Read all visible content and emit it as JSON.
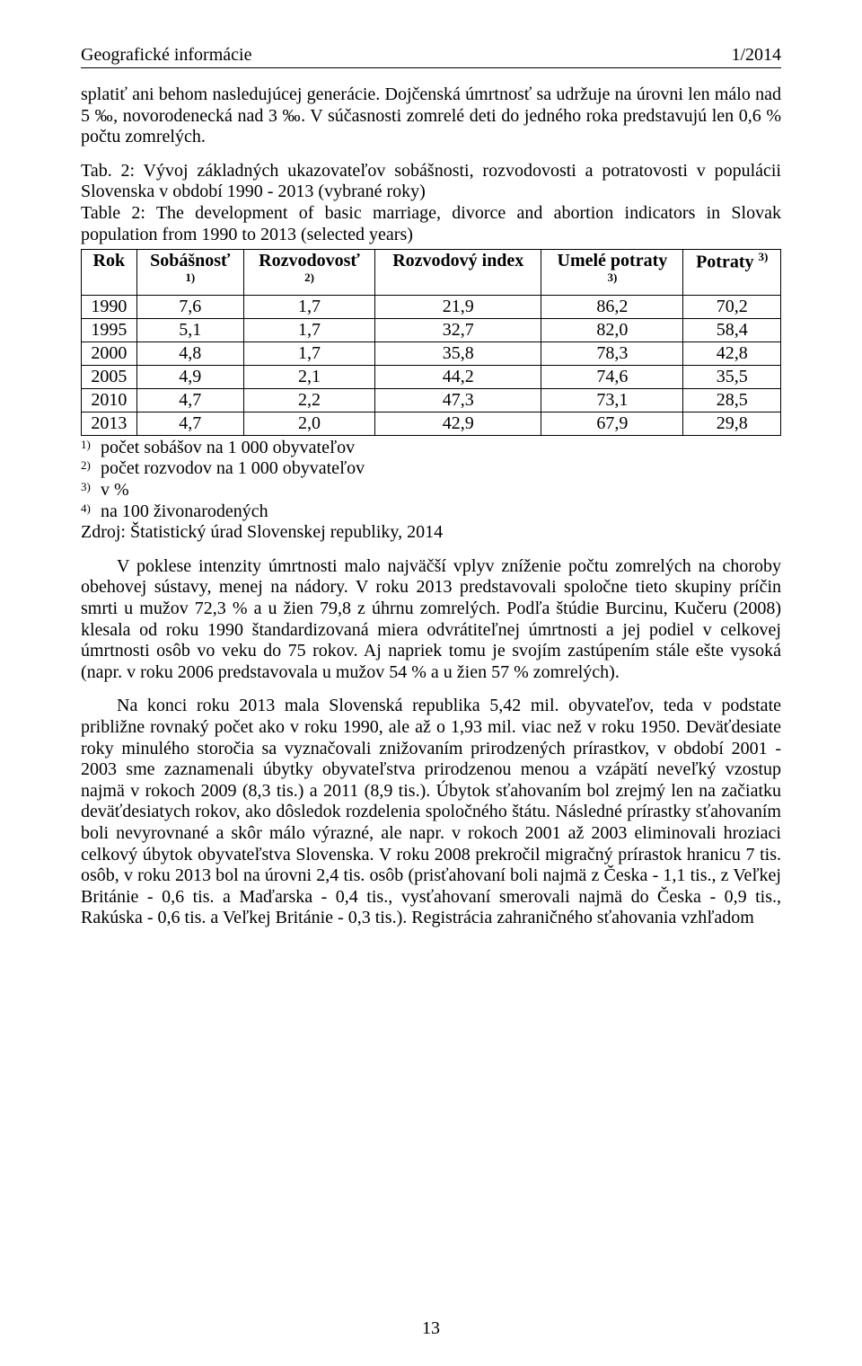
{
  "header": {
    "left": "Geografické informácie",
    "right": "1/2014"
  },
  "para1": "splatiť ani behom nasledujúcej generácie. Dojčenská úmrtnosť sa udržuje na úrovni len málo nad 5 ‰, novorodenecká nad 3 ‰. V súčasnosti zomrelé deti do jedného roka predstavujú len 0,6 % počtu zomrelých.",
  "table_caption_sk": "Tab. 2:  Vývoj základných ukazovateľov sobášnosti, rozvodovosti a potratovosti v populácii Slovenska v období 1990 - 2013 (vybrané roky)",
  "table_caption_en": "Table 2: The development of basic marriage, divorce and abortion indicators in Slovak population from 1990 to 2013 (selected years)",
  "table": {
    "columns": [
      {
        "label": "Rok",
        "sup": ""
      },
      {
        "label": "Sobášnosť",
        "sup": "1)"
      },
      {
        "label": "Rozvodovosť",
        "sup": "2)"
      },
      {
        "label": "Rozvodový index",
        "sup": ""
      },
      {
        "label": "Umelé potraty",
        "sup": "3)"
      },
      {
        "label": "Potraty",
        "sup": "3)"
      }
    ],
    "rows": [
      [
        "1990",
        "7,6",
        "1,7",
        "21,9",
        "86,2",
        "70,2"
      ],
      [
        "1995",
        "5,1",
        "1,7",
        "32,7",
        "82,0",
        "58,4"
      ],
      [
        "2000",
        "4,8",
        "1,7",
        "35,8",
        "78,3",
        "42,8"
      ],
      [
        "2005",
        "4,9",
        "2,1",
        "44,2",
        "74,6",
        "35,5"
      ],
      [
        "2010",
        "4,7",
        "2,2",
        "47,3",
        "73,1",
        "28,5"
      ],
      [
        "2013",
        "4,7",
        "2,0",
        "42,9",
        "67,9",
        "29,8"
      ]
    ]
  },
  "footnotes": [
    {
      "num": "1)",
      "text": "počet sobášov na 1 000 obyvateľov"
    },
    {
      "num": "2)",
      "text": "počet rozvodov na 1 000 obyvateľov"
    },
    {
      "num": "3)",
      "text": "v %"
    },
    {
      "num": "4)",
      "text": "na 100 živonarodených"
    }
  ],
  "source": "Zdroj: Štatistický úrad Slovenskej republiky, 2014",
  "para2": "V poklese intenzity úmrtnosti malo najväčší vplyv zníženie počtu zomrelých na choroby obehovej sústavy, menej na nádory. V roku 2013 predstavovali spoločne tieto skupiny príčin smrti u mužov 72,3 % a u žien 79,8 z úhrnu zomrelých. Podľa štúdie Burcinu, Kučeru (2008) klesala od roku 1990 štandardizovaná miera odvrátiteľnej úmrtnosti a jej podiel v celkovej úmrtnosti osôb vo veku do 75 rokov. Aj napriek tomu je svojím zastúpením stále ešte vysoká (napr. v roku 2006 predstavovala u mužov 54 % a u žien 57 % zomrelých).",
  "para3": "Na konci roku 2013 mala Slovenská republika 5,42 mil. obyvateľov, teda v podstate približne rovnaký počet ako v roku 1990, ale až o 1,93 mil. viac než v roku 1950. Deväťdesiate roky minulého storočia sa vyznačovali znižovaním prirodzených prírastkov, v období 2001 - 2003 sme zaznamenali úbytky obyvateľstva prirodzenou menou a vzápätí neveľký vzostup najmä v rokoch 2009 (8,3 tis.)  a 2011  (8,9 tis.).  Úbytok sťahovaním bol zrejmý len na začiatku deväťdesiatych rokov, ako dôsledok rozdelenia spoločného štátu. Následné prírastky sťahovaním boli nevyrovnané a skôr málo výrazné, ale napr. v rokoch 2001 až 2003 eliminovali hroziaci celkový úbytok obyvateľstva Slovenska. V roku 2008 prekročil migračný prírastok hranicu 7 tis. osôb, v roku 2013 bol na úrovni 2,4 tis. osôb (prisťahovaní boli najmä z Česka - 1,1 tis., z Veľkej Británie - 0,6 tis. a Maďarska - 0,4 tis., vysťahovaní smerovali najmä do Česka - 0,9 tis., Rakúska - 0,6 tis. a Veľkej Británie - 0,3 tis.). Registrácia zahraničného sťahovania vzhľadom",
  "page_number": "13"
}
